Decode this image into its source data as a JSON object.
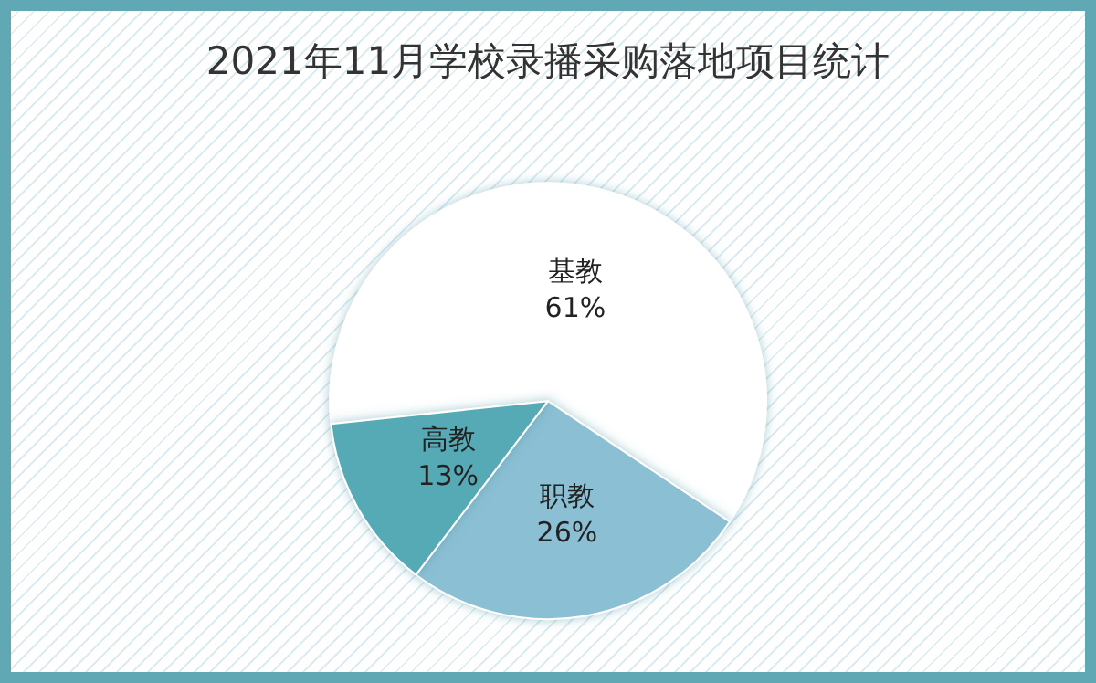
{
  "chart_data": {
    "type": "pie",
    "title": "2021年11月学校录播采购落地项目统计",
    "categories": [
      "基教",
      "职教",
      "高教"
    ],
    "values": [
      61,
      26,
      13
    ],
    "value_labels": [
      "61%",
      "26%",
      "13%"
    ],
    "colors": [
      "#ffffff",
      "#8bbfd3",
      "#56aab5"
    ],
    "legend": false
  }
}
